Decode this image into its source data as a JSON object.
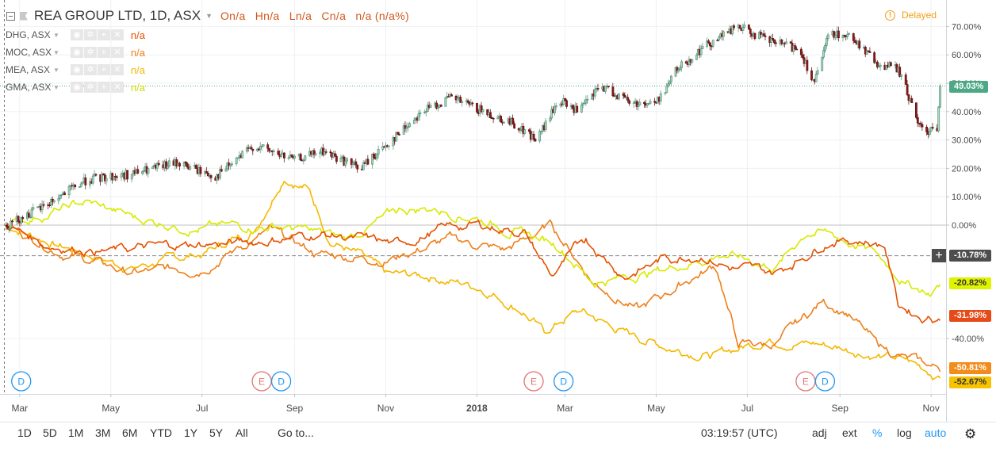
{
  "header": {
    "symbol_title": "REA GROUP LTD, 1D, ASX",
    "ohlc": [
      "On/a",
      "Hn/a",
      "Ln/a",
      "Cn/a",
      "n/a (n/a%)"
    ],
    "delayed_label": "Delayed"
  },
  "legend": [
    {
      "name": "DHG, ASX",
      "value": "n/a",
      "color": "#e65100"
    },
    {
      "name": "MOC, ASX",
      "value": "n/a",
      "color": "#ef7f1a"
    },
    {
      "name": "MEA, ASX",
      "value": "n/a",
      "color": "#f5b800"
    },
    {
      "name": "GMA, ASX",
      "value": "n/a",
      "color": "#d7ea00"
    }
  ],
  "badges": [
    {
      "label": "49.03%",
      "color": "#4da985",
      "text": "#ffffff"
    },
    {
      "label": "-10.78%",
      "color": "#4d4d4d",
      "text": "#ffffff"
    },
    {
      "label": "-20.82%",
      "color": "#dff200",
      "text": "#333333"
    },
    {
      "label": "-31.98%",
      "color": "#e64a19",
      "text": "#ffffff"
    },
    {
      "label": "-50.81%",
      "color": "#f28c1b",
      "text": "#ffffff"
    },
    {
      "label": "-52.67%",
      "color": "#f7c300",
      "text": "#333333"
    }
  ],
  "toolbar": {
    "ranges": [
      "1D",
      "5D",
      "1M",
      "3M",
      "6M",
      "YTD",
      "1Y",
      "5Y",
      "All"
    ],
    "goto": "Go to...",
    "time": "03:19:57 (UTC)",
    "options": [
      "adj",
      "ext",
      "%",
      "log",
      "auto"
    ],
    "settings_icon": "gear-icon"
  },
  "events": [
    {
      "type": "D",
      "at": "2017-03-02",
      "color": "#2196f3"
    },
    {
      "type": "E",
      "at": "2017-08-10",
      "color": "#e57373"
    },
    {
      "type": "D",
      "at": "2017-08-23",
      "color": "#2196f3"
    },
    {
      "type": "E",
      "at": "2018-02-08",
      "color": "#e57373"
    },
    {
      "type": "D",
      "at": "2018-02-28",
      "color": "#2196f3"
    },
    {
      "type": "E",
      "at": "2018-08-09",
      "color": "#e57373"
    },
    {
      "type": "D",
      "at": "2018-08-22",
      "color": "#2196f3"
    }
  ],
  "chart_data": {
    "type": "line",
    "y_unit": "%",
    "ylim": [
      -52.67,
      70
    ],
    "y_ticks": [
      "70.00%",
      "60.00%",
      "50.00%",
      "40.00%",
      "30.00%",
      "20.00%",
      "10.00%",
      "0.00%",
      "-40.00%"
    ],
    "x_ticks": [
      "Mar",
      "May",
      "Jul",
      "Sep",
      "Nov",
      "2018",
      "Mar",
      "May",
      "Jul",
      "Sep",
      "Nov"
    ],
    "x_tick_dates": [
      "2017-03-01",
      "2017-05-01",
      "2017-07-01",
      "2017-09-01",
      "2017-11-01",
      "2018-01-01",
      "2018-03-01",
      "2018-05-01",
      "2018-07-01",
      "2018-09-01",
      "2018-11-01"
    ],
    "x_range": [
      "2017-02-19",
      "2018-11-11"
    ],
    "grid": true,
    "series": [
      {
        "name": "REA GROUP LTD",
        "style": "candles",
        "x": [
          "2017-02-20",
          "2017-03-15",
          "2017-04-15",
          "2017-05-15",
          "2017-06-15",
          "2017-07-10",
          "2017-08-05",
          "2017-09-01",
          "2017-09-20",
          "2017-10-15",
          "2017-11-05",
          "2017-11-25",
          "2017-12-15",
          "2018-01-05",
          "2018-01-25",
          "2018-02-10",
          "2018-02-25",
          "2018-03-10",
          "2018-03-25",
          "2018-04-15",
          "2018-05-01",
          "2018-05-15",
          "2018-06-05",
          "2018-06-25",
          "2018-07-15",
          "2018-08-05",
          "2018-08-15",
          "2018-08-25",
          "2018-09-10",
          "2018-09-25",
          "2018-10-10",
          "2018-10-25",
          "2018-11-05",
          "2018-11-07"
        ],
        "y": [
          0,
          6,
          16,
          18,
          22,
          17,
          28,
          23,
          26,
          20,
          30,
          40,
          45,
          40,
          36,
          30,
          44,
          40,
          49,
          43,
          43,
          55,
          64,
          70,
          65,
          62,
          50,
          68,
          66,
          57,
          55,
          34,
          33,
          49
        ]
      },
      {
        "name": "DHG, ASX",
        "x": [
          "2017-02-20",
          "2017-03-20",
          "2017-05-01",
          "2017-06-20",
          "2017-08-01",
          "2017-09-20",
          "2017-11-10",
          "2017-12-10",
          "2018-01-01",
          "2018-02-01",
          "2018-02-20",
          "2018-03-15",
          "2018-04-10",
          "2018-05-05",
          "2018-06-01",
          "2018-06-20",
          "2018-07-20",
          "2018-08-25",
          "2018-09-15",
          "2018-10-01",
          "2018-10-10",
          "2018-10-25",
          "2018-11-07"
        ],
        "y": [
          0,
          -7,
          -9,
          -7,
          -6,
          -3,
          -7,
          -1,
          0,
          -2,
          -18,
          -5,
          -18,
          -12,
          -10,
          -15,
          -17,
          -5,
          -5,
          -7,
          -28,
          -32,
          -32
        ]
      },
      {
        "name": "MOC, ASX",
        "x": [
          "2017-02-20",
          "2017-04-01",
          "2017-05-15",
          "2017-07-01",
          "2017-08-15",
          "2017-09-15",
          "2017-11-01",
          "2017-12-15",
          "2018-01-20",
          "2018-02-20",
          "2018-03-20",
          "2018-04-20",
          "2018-05-20",
          "2018-06-10",
          "2018-06-25",
          "2018-07-20",
          "2018-08-20",
          "2018-09-05",
          "2018-09-25",
          "2018-10-15",
          "2018-11-07"
        ],
        "y": [
          0,
          -10,
          -17,
          -15,
          -2,
          -10,
          -12,
          -5,
          -9,
          0,
          -20,
          -30,
          -20,
          -14,
          -42,
          -42,
          -27,
          -30,
          -42,
          -47,
          -51
        ]
      },
      {
        "name": "MEA, ASX",
        "x": [
          "2017-02-20",
          "2017-04-01",
          "2017-05-15",
          "2017-07-01",
          "2017-08-05",
          "2017-08-25",
          "2017-09-10",
          "2017-09-25",
          "2017-10-15",
          "2017-11-01",
          "2017-12-01",
          "2018-01-05",
          "2018-02-01",
          "2018-02-15",
          "2018-03-10",
          "2018-04-10",
          "2018-05-10",
          "2018-06-10",
          "2018-07-15",
          "2018-08-20",
          "2018-09-20",
          "2018-10-15",
          "2018-11-07"
        ],
        "y": [
          0,
          -8,
          -15,
          -10,
          -2,
          18,
          13,
          -5,
          -11,
          -18,
          -18,
          -22,
          -30,
          -38,
          -30,
          -38,
          -43,
          -46,
          -40,
          -42,
          -45,
          -48,
          -53
        ]
      },
      {
        "name": "GMA, ASX",
        "x": [
          "2017-02-20",
          "2017-04-15",
          "2017-05-20",
          "2017-07-01",
          "2017-08-20",
          "2017-09-10",
          "2017-10-05",
          "2017-11-10",
          "2017-12-01",
          "2018-01-01",
          "2018-01-25",
          "2018-02-25",
          "2018-03-20",
          "2018-04-15",
          "2018-05-10",
          "2018-06-15",
          "2018-07-20",
          "2018-08-10",
          "2018-08-25",
          "2018-09-25",
          "2018-10-15",
          "2018-11-01",
          "2018-11-07"
        ],
        "y": [
          0,
          8,
          2,
          -1,
          0,
          -2,
          -5,
          5,
          6,
          3,
          -2,
          -7,
          -20,
          -18,
          -15,
          -10,
          -15,
          -2,
          -3,
          -10,
          -20,
          -24,
          -21
        ]
      }
    ]
  }
}
